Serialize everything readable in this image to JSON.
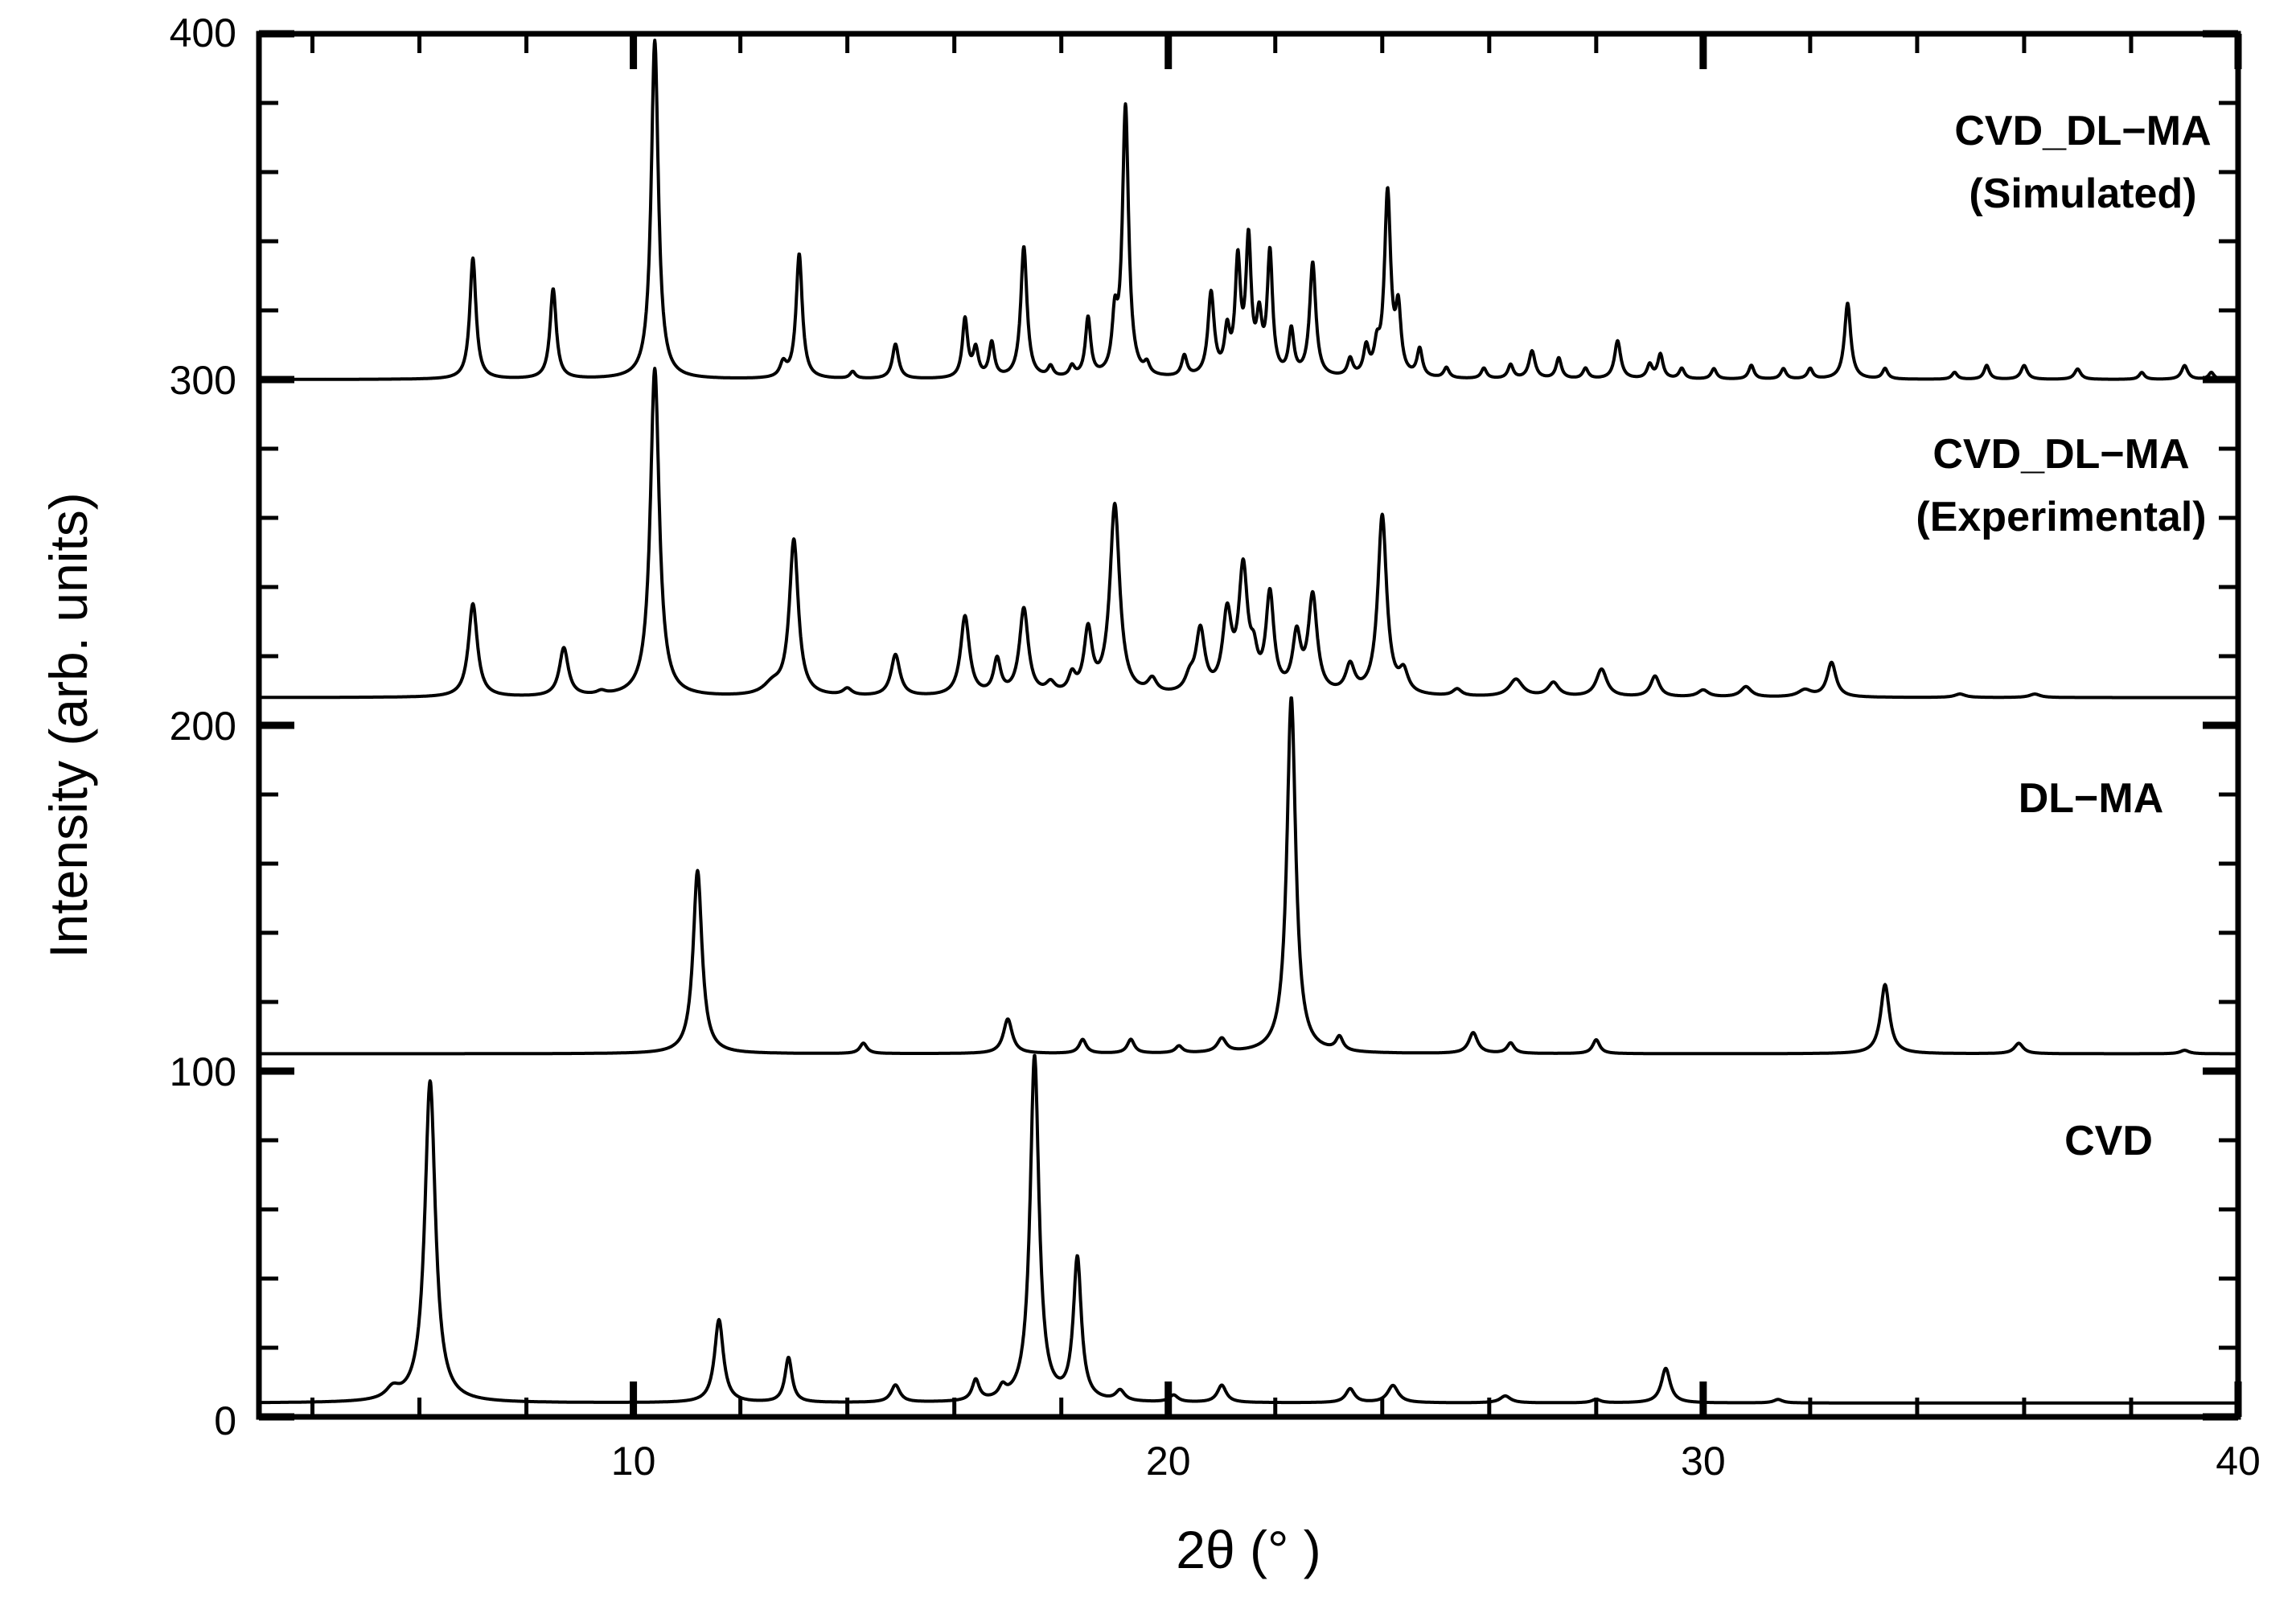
{
  "chart_data": {
    "type": "line",
    "xlabel": "2θ (°  )",
    "ylabel": "Intensity (arb. units)",
    "xlim": [
      3,
      40
    ],
    "ylim": [
      0,
      400
    ],
    "x_ticks": [
      "10",
      "20",
      "30",
      "40"
    ],
    "y_ticks": [
      "0",
      "100",
      "200",
      "300",
      "400"
    ],
    "grid": false,
    "legend": "none",
    "series": [
      {
        "name": "CVD",
        "label_lines": [
          "CVD"
        ],
        "baseline": 4,
        "peaks": [
          [
            5.5,
            3,
            0.15
          ],
          [
            6.2,
            93,
            0.12
          ],
          [
            11.6,
            24,
            0.1
          ],
          [
            12.9,
            13,
            0.08
          ],
          [
            14.9,
            5,
            0.1
          ],
          [
            16.4,
            6,
            0.08
          ],
          [
            16.9,
            3,
            0.08
          ],
          [
            17.5,
            100,
            0.1
          ],
          [
            18.3,
            41,
            0.09
          ],
          [
            19.1,
            3,
            0.1
          ],
          [
            20.1,
            2,
            0.1
          ],
          [
            21.0,
            5,
            0.1
          ],
          [
            23.4,
            4,
            0.1
          ],
          [
            24.2,
            5,
            0.12
          ],
          [
            26.3,
            2,
            0.12
          ],
          [
            28.0,
            1,
            0.1
          ],
          [
            29.3,
            10,
            0.1
          ],
          [
            31.4,
            1,
            0.1
          ]
        ]
      },
      {
        "name": "DL−MA",
        "label_lines": [
          "DL−MA"
        ],
        "baseline": 105,
        "peaks": [
          [
            11.2,
            53,
            0.1
          ],
          [
            14.3,
            3,
            0.08
          ],
          [
            17.0,
            10,
            0.1
          ],
          [
            18.4,
            4,
            0.08
          ],
          [
            19.3,
            4,
            0.08
          ],
          [
            20.2,
            2,
            0.08
          ],
          [
            21.0,
            4,
            0.1
          ],
          [
            22.3,
            103,
            0.1
          ],
          [
            23.2,
            4,
            0.08
          ],
          [
            25.7,
            6,
            0.1
          ],
          [
            26.4,
            3,
            0.08
          ],
          [
            28.0,
            4,
            0.08
          ],
          [
            33.4,
            20,
            0.1
          ],
          [
            35.9,
            3,
            0.1
          ],
          [
            39.0,
            1,
            0.1
          ]
        ]
      },
      {
        "name": "CVD_DL−MA (Experimental)",
        "label_lines": [
          "CVD_DL−MA",
          "(Experimental)"
        ],
        "baseline": 208,
        "peaks": [
          [
            7.0,
            27,
            0.1
          ],
          [
            8.7,
            14,
            0.1
          ],
          [
            9.4,
            1,
            0.1
          ],
          [
            10.4,
            95,
            0.1
          ],
          [
            12.6,
            3,
            0.2
          ],
          [
            13.0,
            45,
            0.1
          ],
          [
            14.0,
            2,
            0.1
          ],
          [
            14.9,
            12,
            0.1
          ],
          [
            16.2,
            23,
            0.1
          ],
          [
            16.8,
            10,
            0.08
          ],
          [
            17.3,
            25,
            0.1
          ],
          [
            17.8,
            3,
            0.1
          ],
          [
            18.2,
            5,
            0.08
          ],
          [
            18.5,
            18,
            0.09
          ],
          [
            19.0,
            55,
            0.11
          ],
          [
            19.7,
            4,
            0.1
          ],
          [
            20.4,
            4,
            0.1
          ],
          [
            20.6,
            18,
            0.1
          ],
          [
            21.1,
            22,
            0.1
          ],
          [
            21.4,
            35,
            0.1
          ],
          [
            21.6,
            8,
            0.08
          ],
          [
            21.9,
            28,
            0.09
          ],
          [
            22.4,
            16,
            0.09
          ],
          [
            22.7,
            28,
            0.1
          ],
          [
            23.4,
            8,
            0.1
          ],
          [
            24.0,
            52,
            0.1
          ],
          [
            24.4,
            6,
            0.1
          ],
          [
            25.4,
            2,
            0.1
          ],
          [
            26.5,
            5,
            0.15
          ],
          [
            27.2,
            4,
            0.12
          ],
          [
            28.1,
            8,
            0.12
          ],
          [
            29.1,
            6,
            0.1
          ],
          [
            30.0,
            2,
            0.12
          ],
          [
            30.8,
            3,
            0.12
          ],
          [
            31.9,
            2,
            0.15
          ],
          [
            32.4,
            10,
            0.1
          ],
          [
            34.8,
            1,
            0.12
          ],
          [
            36.2,
            1,
            0.12
          ]
        ]
      },
      {
        "name": "CVD_DL−MA (Simulated)",
        "label_lines": [
          "CVD_DL−MA",
          "(Simulated)"
        ],
        "baseline": 300,
        "peaks": [
          [
            7.0,
            35,
            0.07
          ],
          [
            8.5,
            26,
            0.07
          ],
          [
            10.4,
            98,
            0.08
          ],
          [
            12.8,
            4,
            0.07
          ],
          [
            13.1,
            36,
            0.07
          ],
          [
            14.1,
            2,
            0.06
          ],
          [
            14.9,
            10,
            0.07
          ],
          [
            16.2,
            17,
            0.06
          ],
          [
            16.4,
            8,
            0.06
          ],
          [
            16.7,
            10,
            0.06
          ],
          [
            17.3,
            38,
            0.07
          ],
          [
            17.8,
            3,
            0.06
          ],
          [
            18.2,
            3,
            0.06
          ],
          [
            18.5,
            17,
            0.06
          ],
          [
            19.0,
            15,
            0.06
          ],
          [
            19.2,
            78,
            0.07
          ],
          [
            19.6,
            3,
            0.06
          ],
          [
            20.3,
            6,
            0.06
          ],
          [
            20.8,
            24,
            0.07
          ],
          [
            21.1,
            12,
            0.06
          ],
          [
            21.3,
            32,
            0.06
          ],
          [
            21.5,
            38,
            0.06
          ],
          [
            21.7,
            15,
            0.06
          ],
          [
            21.9,
            35,
            0.06
          ],
          [
            22.3,
            13,
            0.06
          ],
          [
            22.7,
            33,
            0.07
          ],
          [
            23.4,
            5,
            0.06
          ],
          [
            23.7,
            8,
            0.06
          ],
          [
            23.9,
            7,
            0.06
          ],
          [
            24.1,
            53,
            0.07
          ],
          [
            24.3,
            18,
            0.06
          ],
          [
            24.7,
            8,
            0.06
          ],
          [
            25.2,
            3,
            0.06
          ],
          [
            25.9,
            3,
            0.06
          ],
          [
            26.4,
            4,
            0.06
          ],
          [
            26.8,
            8,
            0.07
          ],
          [
            27.3,
            6,
            0.06
          ],
          [
            27.8,
            3,
            0.06
          ],
          [
            28.4,
            11,
            0.07
          ],
          [
            29.0,
            4,
            0.06
          ],
          [
            29.2,
            7,
            0.06
          ],
          [
            29.6,
            3,
            0.06
          ],
          [
            30.2,
            3,
            0.06
          ],
          [
            30.9,
            4,
            0.06
          ],
          [
            31.5,
            3,
            0.06
          ],
          [
            32.0,
            3,
            0.06
          ],
          [
            32.7,
            22,
            0.07
          ],
          [
            33.4,
            3,
            0.06
          ],
          [
            34.7,
            2,
            0.06
          ],
          [
            35.3,
            4,
            0.06
          ],
          [
            36.0,
            4,
            0.07
          ],
          [
            37.0,
            3,
            0.07
          ],
          [
            38.2,
            2,
            0.06
          ],
          [
            39.0,
            4,
            0.07
          ],
          [
            39.5,
            2,
            0.06
          ]
        ]
      }
    ]
  }
}
